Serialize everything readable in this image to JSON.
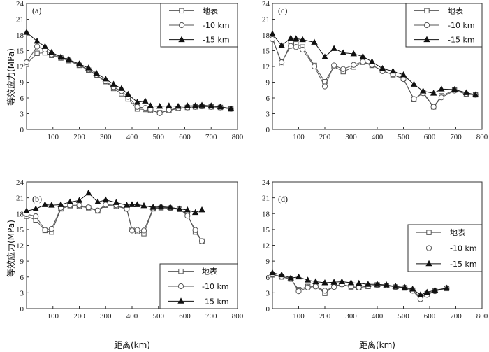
{
  "figure": {
    "shared_xlabel": "距离(km)",
    "shared_ylabel": "等效应力(MPa)"
  },
  "chart_data": [
    {
      "panel": "(a)",
      "type": "line",
      "ylim": [
        0,
        24
      ],
      "xlim": [
        0,
        800
      ],
      "yticks": [
        "0",
        "3",
        "6",
        "9",
        "12",
        "15",
        "18",
        "21",
        "24"
      ],
      "xticks": [
        "100",
        "200",
        "300",
        "400",
        "500",
        "600",
        "700",
        "800"
      ],
      "legend": "top-right",
      "series": [
        {
          "name": "地表",
          "marker": "square",
          "color": "#555555",
          "x": [
            0,
            40,
            70,
            95,
            130,
            160,
            200,
            235,
            265,
            300,
            330,
            360,
            385,
            420,
            450,
            470,
            505,
            540,
            575,
            610,
            640,
            665,
            700,
            735,
            775
          ],
          "y": [
            12.5,
            14.5,
            14.6,
            14.1,
            13.6,
            13.1,
            12.2,
            11.3,
            10.3,
            9.1,
            7.8,
            6.8,
            5.8,
            3.9,
            3.8,
            3.6,
            3.2,
            3.6,
            4.0,
            4.2,
            4.3,
            4.4,
            4.3,
            4.2,
            3.9
          ]
        },
        {
          "name": "-10 km",
          "marker": "circle",
          "color": "#555555",
          "x": [
            0,
            40,
            70,
            95,
            130,
            160,
            200,
            235,
            265,
            300,
            330,
            360,
            385,
            420,
            450,
            470,
            505,
            540,
            575,
            610,
            640,
            665,
            700,
            735,
            775
          ],
          "y": [
            12.8,
            15.8,
            15.2,
            14.3,
            13.7,
            13.2,
            12.3,
            11.4,
            10.4,
            9.2,
            8.1,
            7.3,
            6.2,
            4.3,
            4.1,
            3.8,
            3.1,
            3.7,
            4.1,
            4.2,
            4.3,
            4.4,
            4.3,
            4.2,
            3.9
          ]
        },
        {
          "name": "-15 km",
          "marker": "triangle",
          "color": "#111111",
          "x": [
            0,
            40,
            70,
            95,
            130,
            160,
            200,
            235,
            265,
            300,
            330,
            360,
            385,
            420,
            450,
            470,
            505,
            540,
            575,
            610,
            640,
            665,
            700,
            735,
            775
          ],
          "y": [
            18.5,
            16.8,
            15.8,
            14.7,
            13.8,
            13.3,
            12.5,
            11.7,
            10.7,
            9.6,
            8.6,
            7.8,
            6.7,
            5.2,
            5.4,
            4.5,
            4.4,
            4.5,
            4.4,
            4.5,
            4.5,
            4.6,
            4.5,
            4.3,
            4.0
          ]
        }
      ]
    },
    {
      "panel": "(c)",
      "type": "line",
      "ylim": [
        0,
        24
      ],
      "xlim": [
        0,
        800
      ],
      "yticks": [
        "0",
        "3",
        "6",
        "9",
        "12",
        "15",
        "18",
        "21",
        "24"
      ],
      "xticks": [
        "100",
        "200",
        "300",
        "400",
        "500",
        "600",
        "700",
        "800"
      ],
      "legend": "top-right",
      "series": [
        {
          "name": "地表",
          "marker": "square",
          "color": "#555555",
          "x": [
            0,
            35,
            70,
            90,
            115,
            160,
            200,
            235,
            270,
            310,
            345,
            380,
            420,
            460,
            500,
            540,
            575,
            615,
            645,
            695,
            740,
            775
          ],
          "y": [
            17.5,
            12.5,
            16.5,
            16.3,
            15.7,
            12.2,
            9.1,
            12.0,
            11.0,
            11.9,
            12.8,
            12.2,
            11.2,
            10.4,
            9.7,
            5.7,
            7.1,
            4.3,
            6.4,
            7.5,
            6.7,
            6.6
          ]
        },
        {
          "name": "-10 km",
          "marker": "circle",
          "color": "#555555",
          "x": [
            0,
            35,
            70,
            90,
            115,
            160,
            200,
            235,
            270,
            310,
            345,
            380,
            420,
            460,
            500,
            540,
            575,
            615,
            645,
            695,
            740,
            775
          ],
          "y": [
            17.2,
            12.8,
            15.9,
            15.7,
            15.2,
            12.0,
            8.2,
            12.2,
            11.5,
            12.3,
            12.9,
            12.3,
            11.1,
            10.5,
            9.6,
            5.8,
            6.9,
            4.3,
            6.1,
            7.4,
            6.8,
            6.6
          ]
        },
        {
          "name": "-15 km",
          "marker": "triangle",
          "color": "#111111",
          "x": [
            0,
            35,
            70,
            90,
            115,
            160,
            200,
            235,
            270,
            310,
            345,
            380,
            420,
            460,
            500,
            540,
            575,
            615,
            645,
            695,
            740,
            775
          ],
          "y": [
            18.2,
            16.0,
            17.4,
            17.3,
            17.1,
            16.6,
            13.8,
            15.4,
            14.6,
            14.4,
            13.9,
            12.9,
            11.6,
            11.1,
            10.4,
            8.6,
            7.3,
            6.9,
            7.7,
            7.6,
            7.0,
            6.6
          ]
        }
      ]
    },
    {
      "panel": "(b)",
      "type": "line",
      "ylim": [
        0,
        24
      ],
      "xlim": [
        0,
        800
      ],
      "yticks": [
        "0",
        "3",
        "6",
        "9",
        "12",
        "15",
        "18",
        "21",
        "24"
      ],
      "xticks": [
        "100",
        "200",
        "300",
        "400",
        "500",
        "600",
        "700",
        "800"
      ],
      "legend": "bottom-right",
      "series": [
        {
          "name": "地表",
          "marker": "square",
          "color": "#555555",
          "x": [
            0,
            35,
            70,
            95,
            130,
            165,
            200,
            235,
            270,
            300,
            340,
            380,
            400,
            420,
            445,
            480,
            510,
            545,
            580,
            610,
            640,
            665
          ],
          "y": [
            17.5,
            16.8,
            14.8,
            14.5,
            18.9,
            19.5,
            19.4,
            19.1,
            18.5,
            19.6,
            19.4,
            18.9,
            15.0,
            14.6,
            14.2,
            18.9,
            19.1,
            19.0,
            18.8,
            17.9,
            14.5,
            12.8
          ]
        },
        {
          "name": "-10 km",
          "marker": "circle",
          "color": "#555555",
          "x": [
            0,
            35,
            70,
            95,
            130,
            165,
            200,
            235,
            270,
            300,
            340,
            380,
            400,
            420,
            445,
            480,
            510,
            545,
            580,
            610,
            640,
            665
          ],
          "y": [
            17.9,
            17.5,
            14.9,
            15.1,
            19.1,
            19.6,
            19.6,
            19.2,
            18.6,
            19.7,
            19.6,
            18.9,
            14.8,
            14.9,
            14.8,
            19.0,
            19.2,
            19.1,
            18.9,
            17.6,
            14.9,
            12.8
          ]
        },
        {
          "name": "-15 km",
          "marker": "triangle",
          "color": "#111111",
          "x": [
            0,
            35,
            70,
            95,
            130,
            165,
            200,
            235,
            270,
            300,
            340,
            380,
            400,
            420,
            445,
            480,
            510,
            545,
            580,
            610,
            640,
            665
          ],
          "y": [
            18.5,
            18.9,
            19.7,
            19.6,
            19.7,
            20.2,
            20.5,
            21.9,
            20.2,
            20.6,
            20.1,
            19.6,
            19.7,
            19.7,
            19.5,
            19.2,
            19.3,
            19.2,
            18.9,
            18.7,
            18.2,
            18.7
          ]
        }
      ]
    },
    {
      "panel": "(d)",
      "type": "line",
      "ylim": [
        0,
        24
      ],
      "xlim": [
        0,
        800
      ],
      "yticks": [
        "0",
        "3",
        "6",
        "9",
        "12",
        "15",
        "18",
        "21",
        "24"
      ],
      "xticks": [
        "100",
        "200",
        "300",
        "400",
        "500",
        "600",
        "700",
        "800"
      ],
      "legend": "right",
      "series": [
        {
          "name": "地表",
          "marker": "square",
          "color": "#555555",
          "x": [
            0,
            35,
            70,
            100,
            135,
            165,
            200,
            235,
            265,
            300,
            330,
            365,
            400,
            435,
            470,
            505,
            535,
            565,
            590,
            620,
            665
          ],
          "y": [
            6.4,
            6.0,
            5.6,
            3.6,
            4.2,
            4.3,
            2.9,
            4.3,
            4.6,
            4.1,
            4.0,
            4.2,
            4.5,
            4.4,
            4.1,
            3.9,
            3.5,
            2.1,
            2.8,
            3.4,
            3.8
          ]
        },
        {
          "name": "-10 km",
          "marker": "circle",
          "color": "#555555",
          "x": [
            0,
            35,
            70,
            100,
            135,
            165,
            200,
            235,
            265,
            300,
            330,
            365,
            400,
            435,
            470,
            505,
            535,
            565,
            590,
            620,
            665
          ],
          "y": [
            6.5,
            6.1,
            5.7,
            3.3,
            4.0,
            4.2,
            3.4,
            4.1,
            4.6,
            4.2,
            4.0,
            4.3,
            4.5,
            4.4,
            4.1,
            4.0,
            3.4,
            1.8,
            2.6,
            3.3,
            3.9
          ]
        },
        {
          "name": "-15 km",
          "marker": "triangle",
          "color": "#111111",
          "x": [
            0,
            35,
            70,
            100,
            135,
            165,
            200,
            235,
            265,
            300,
            330,
            365,
            400,
            435,
            470,
            505,
            535,
            565,
            590,
            620,
            665
          ],
          "y": [
            6.8,
            6.4,
            5.8,
            6.0,
            5.4,
            5.1,
            4.9,
            5.0,
            5.1,
            4.9,
            4.8,
            4.6,
            4.6,
            4.5,
            4.2,
            4.0,
            3.7,
            2.6,
            3.1,
            3.5,
            3.9
          ]
        }
      ]
    }
  ]
}
